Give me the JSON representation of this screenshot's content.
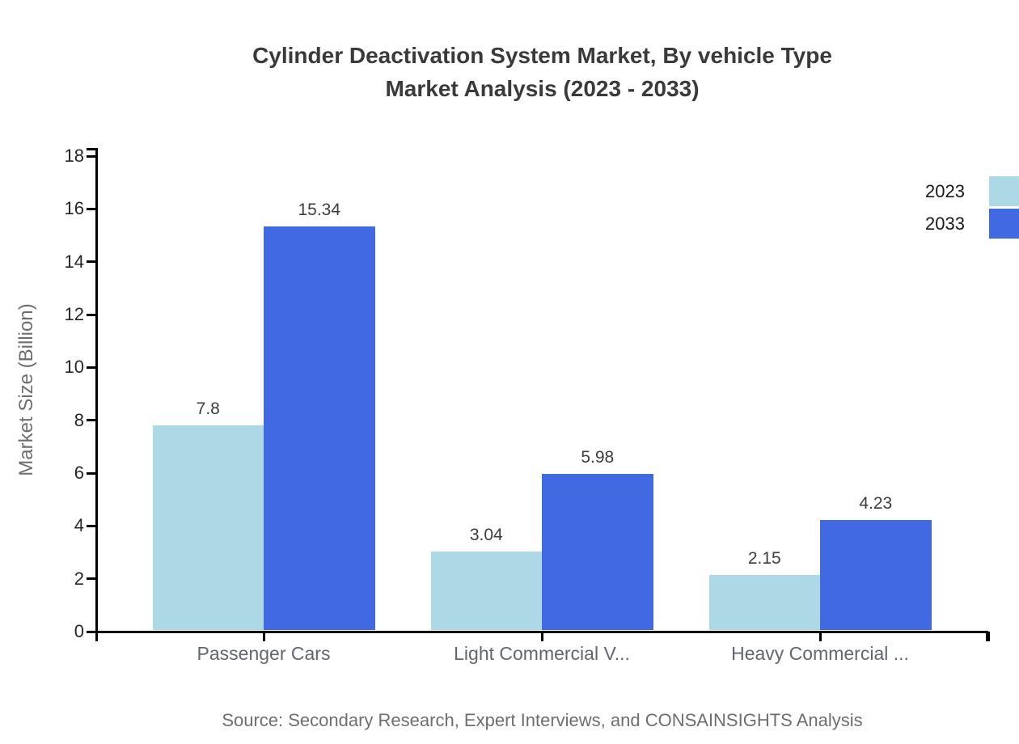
{
  "chart": {
    "title_line1": "Cylinder Deactivation System Market, By vehicle Type",
    "title_line2": "Market Analysis (2023 - 2033)",
    "source": "Source: Secondary Research, Expert Interviews, and CONSAINSIGHTS Analysis"
  },
  "chart_data": {
    "type": "bar",
    "title": "Cylinder Deactivation System Market, By vehicle Type Market Analysis (2023 - 2033)",
    "xlabel": "",
    "ylabel": "Market Size (Billion)",
    "categories": [
      "Passenger Cars",
      "Light Commercial V...",
      "Heavy Commercial ..."
    ],
    "series": [
      {
        "name": "2023",
        "color": "#ADD8E6",
        "values": [
          7.8,
          3.04,
          2.15
        ],
        "value_labels": [
          "7.8",
          "3.04",
          "2.15"
        ]
      },
      {
        "name": "2033",
        "color": "#4169E1",
        "values": [
          15.34,
          5.98,
          4.23
        ],
        "value_labels": [
          "15.34",
          "5.98",
          "4.23"
        ]
      }
    ],
    "ylim": [
      0,
      18
    ],
    "ytick_step": 2,
    "yticks": [
      0,
      2,
      4,
      6,
      8,
      10,
      12,
      14,
      16,
      18
    ],
    "grid": false,
    "legend_position": "top-right",
    "axis_color": "#000000",
    "background_color": "#ffffff"
  }
}
